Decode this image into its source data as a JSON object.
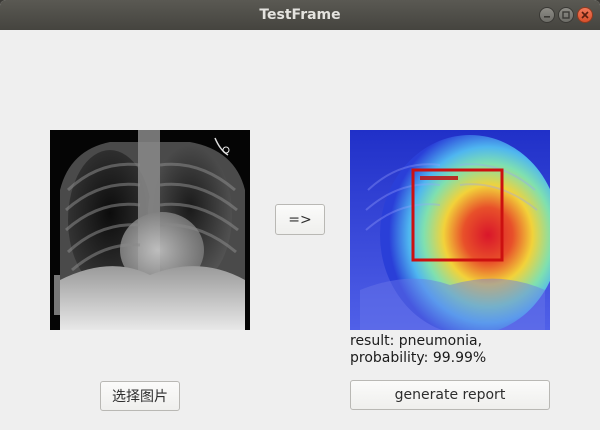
{
  "window": {
    "title": "TestFrame"
  },
  "controls": {
    "arrow_label": "=>",
    "select_image_label": "选择图片",
    "generate_report_label": "generate report"
  },
  "result": {
    "line1": "result: pneumonia,",
    "line2": "probability: 99.99%"
  },
  "icons": {
    "minimize": "minimize-icon",
    "maximize": "maximize-icon",
    "close": "close-icon"
  }
}
